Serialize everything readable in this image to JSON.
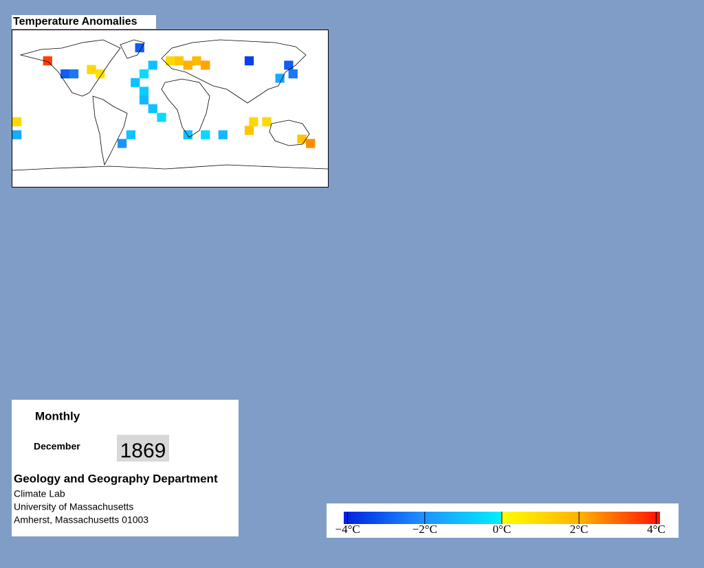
{
  "title": "Temperature Anomalies",
  "map": {
    "cells": [
      {
        "lon": -140,
        "lat": 55,
        "value": 3.5
      },
      {
        "lon": -120,
        "lat": 40,
        "value": -3
      },
      {
        "lon": -110,
        "lat": 40,
        "value": -2.5
      },
      {
        "lon": -90,
        "lat": 45,
        "value": 1
      },
      {
        "lon": -80,
        "lat": 40,
        "value": 0.8
      },
      {
        "lon": -35,
        "lat": 70,
        "value": -3
      },
      {
        "lon": -20,
        "lat": 50,
        "value": -1
      },
      {
        "lon": -30,
        "lat": 40,
        "value": -0.5
      },
      {
        "lon": -40,
        "lat": 30,
        "value": -1
      },
      {
        "lon": -30,
        "lat": 20,
        "value": -0.8
      },
      {
        "lon": -30,
        "lat": 10,
        "value": -1.2
      },
      {
        "lon": -20,
        "lat": 0,
        "value": -1
      },
      {
        "lon": -10,
        "lat": -10,
        "value": -0.5
      },
      {
        "lon": 0,
        "lat": 55,
        "value": 1
      },
      {
        "lon": 10,
        "lat": 55,
        "value": 1.5
      },
      {
        "lon": 20,
        "lat": 50,
        "value": 2
      },
      {
        "lon": 30,
        "lat": 55,
        "value": 1.8
      },
      {
        "lon": 40,
        "lat": 50,
        "value": 2.2
      },
      {
        "lon": 90,
        "lat": 55,
        "value": -3.5
      },
      {
        "lon": 135,
        "lat": 50,
        "value": -3
      },
      {
        "lon": 140,
        "lat": 40,
        "value": -2.5
      },
      {
        "lon": 125,
        "lat": 35,
        "value": -1.5
      },
      {
        "lon": 95,
        "lat": -15,
        "value": 1
      },
      {
        "lon": 90,
        "lat": -25,
        "value": 1.5
      },
      {
        "lon": 110,
        "lat": -15,
        "value": 1
      },
      {
        "lon": 20,
        "lat": -30,
        "value": -1
      },
      {
        "lon": 40,
        "lat": -30,
        "value": -0.5
      },
      {
        "lon": 60,
        "lat": -30,
        "value": -1.2
      },
      {
        "lon": 150,
        "lat": -35,
        "value": 1.5
      },
      {
        "lon": 160,
        "lat": -40,
        "value": 2.5
      },
      {
        "lon": -55,
        "lat": -40,
        "value": -2
      },
      {
        "lon": -45,
        "lat": -30,
        "value": -1
      },
      {
        "lon": -175,
        "lat": -15,
        "value": 1
      },
      {
        "lon": -175,
        "lat": -30,
        "value": -1.5
      }
    ]
  },
  "colorbar": {
    "lim": [
      -4.1,
      4.1
    ],
    "ticks": [
      {
        "value": -4,
        "label": "−4°C"
      },
      {
        "value": -2,
        "label": "−2°C"
      },
      {
        "value": 0,
        "label": "0°C"
      },
      {
        "value": 2,
        "label": "2°C"
      },
      {
        "value": 4,
        "label": "4°C"
      }
    ]
  },
  "panel": {
    "period": "Monthly",
    "month": "December",
    "year": "1869",
    "department": "Geology and Geography Department",
    "lines": [
      "Climate Lab",
      "University of Massachusetts",
      "Amherst, Massachusetts 01003"
    ]
  }
}
